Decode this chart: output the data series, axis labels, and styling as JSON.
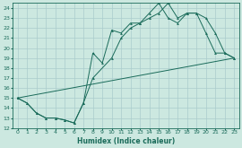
{
  "title": "",
  "xlabel": "Humidex (Indice chaleur)",
  "bg_color": "#cce8e0",
  "grid_color": "#aacccc",
  "line_color": "#1a6b5a",
  "xlim": [
    -0.5,
    23.5
  ],
  "ylim": [
    12,
    24.5
  ],
  "xticks": [
    0,
    1,
    2,
    3,
    4,
    5,
    6,
    7,
    8,
    9,
    10,
    11,
    12,
    13,
    14,
    15,
    16,
    17,
    18,
    19,
    20,
    21,
    22,
    23
  ],
  "yticks": [
    12,
    13,
    14,
    15,
    16,
    17,
    18,
    19,
    20,
    21,
    22,
    23,
    24
  ],
  "line1_x": [
    0,
    1,
    2,
    3,
    4,
    5,
    6,
    7,
    8,
    9,
    10,
    11,
    12,
    13,
    14,
    15,
    16,
    17,
    18,
    19,
    20,
    21,
    22,
    23
  ],
  "line1_y": [
    15,
    14.5,
    13.5,
    13,
    13,
    12.8,
    12.5,
    14.5,
    19.5,
    18.5,
    21.8,
    21.5,
    22.5,
    22.5,
    23,
    23.5,
    24.5,
    23,
    23.5,
    23.5,
    21.5,
    19.5,
    19.5,
    19
  ],
  "line2_x": [
    0,
    1,
    2,
    3,
    4,
    5,
    6,
    7,
    8,
    10,
    11,
    12,
    13,
    14,
    15,
    16,
    17,
    18,
    19,
    20,
    21,
    22,
    23
  ],
  "line2_y": [
    15,
    14.5,
    13.5,
    13,
    13,
    12.8,
    12.5,
    14.5,
    17,
    19,
    21,
    22,
    22.5,
    23.5,
    24.5,
    23,
    22.5,
    23.5,
    23.5,
    23,
    21.5,
    19.5,
    19
  ],
  "line3_x": [
    0,
    23
  ],
  "line3_y": [
    15,
    19
  ]
}
